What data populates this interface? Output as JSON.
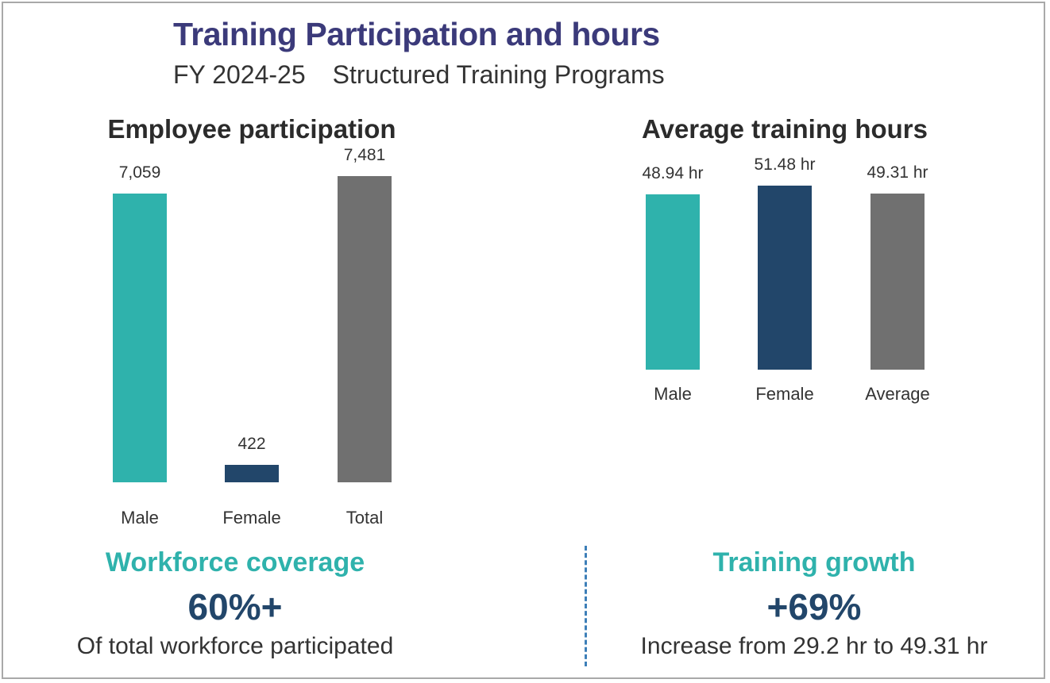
{
  "header": {
    "title": "Training Participation and hours",
    "period": "FY 2024-25",
    "program": "Structured Training Programs"
  },
  "chart_data": [
    {
      "type": "bar",
      "title": "Employee participation",
      "categories": [
        "Male",
        "Female",
        "Total"
      ],
      "values": [
        7059,
        422,
        7481
      ],
      "value_labels": [
        "7,059",
        "422",
        "7,481"
      ],
      "colors": [
        "#2fb2ac",
        "#22466a",
        "#707070"
      ],
      "xlabel": "",
      "ylabel": "",
      "ylim": [
        0,
        7481
      ],
      "grid": false
    },
    {
      "type": "bar",
      "title": "Average training hours",
      "categories": [
        "Male",
        "Female",
        "Average"
      ],
      "values": [
        48.94,
        51.48,
        49.31
      ],
      "value_labels": [
        "48.94 hr",
        "51.48 hr",
        "49.31 hr"
      ],
      "colors": [
        "#2fb2ac",
        "#22466a",
        "#707070"
      ],
      "xlabel": "",
      "ylabel": "",
      "ylim": [
        0,
        51.48
      ],
      "grid": false
    }
  ],
  "stats": {
    "coverage": {
      "heading": "Workforce coverage",
      "value": "60%+",
      "description": "Of total workforce participated"
    },
    "growth": {
      "heading": "Training growth",
      "value": "+69%",
      "description": "Increase from 29.2 hr to 49.31 hr"
    }
  },
  "colors": {
    "accent_teal": "#2fb2ac",
    "navy": "#22466a",
    "gray": "#707070",
    "title_purple": "#3b3a7a",
    "divider_blue": "#3d7fb8"
  }
}
